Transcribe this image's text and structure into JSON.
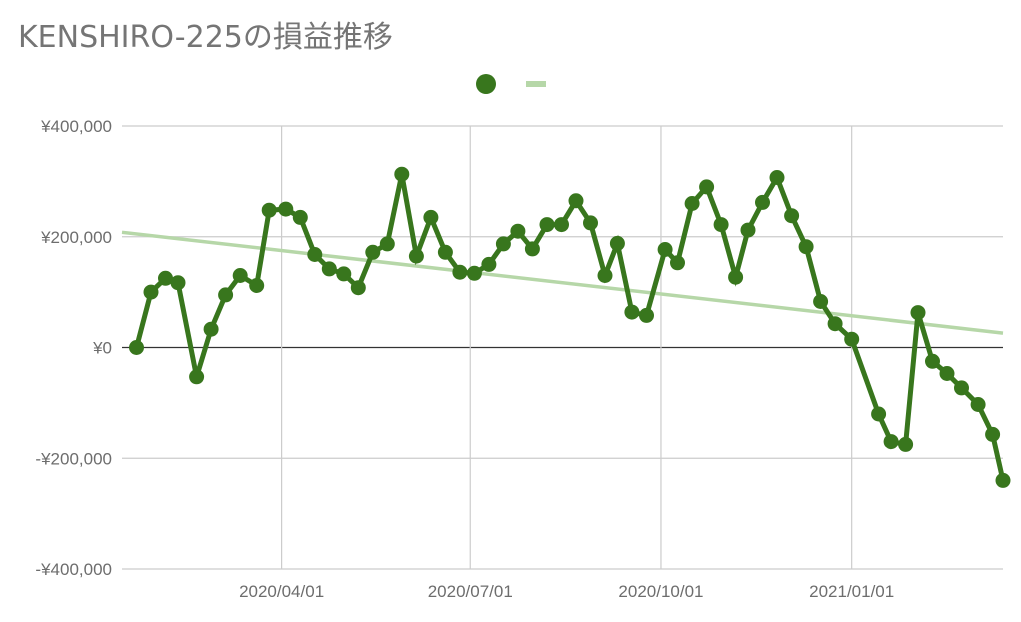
{
  "title": "KENSHIRO-225の損益推移",
  "colors": {
    "series": "#38761d",
    "trend": "#b6d7a8",
    "grid": "#cccccc",
    "zero_line": "#333333",
    "axis_text": "#6d6d6d"
  },
  "chart_data": {
    "type": "line",
    "title": "KENSHIRO-225の損益推移",
    "xlabel": "",
    "ylabel": "",
    "ylim": [
      -400000,
      400000
    ],
    "xlim": [
      "2020-01-15",
      "2021-03-15"
    ],
    "grid": true,
    "legend": "top-center",
    "y_ticks": [
      {
        "value": 400000,
        "label": "¥400,000"
      },
      {
        "value": 200000,
        "label": "¥200,000"
      },
      {
        "value": 0,
        "label": "¥0"
      },
      {
        "value": -200000,
        "label": "-¥200,000"
      },
      {
        "value": -400000,
        "label": "-¥400,000"
      }
    ],
    "x_ticks": [
      {
        "value": "2020-04-01",
        "label": "2020/04/01"
      },
      {
        "value": "2020-07-01",
        "label": "2020/07/01"
      },
      {
        "value": "2020-10-01",
        "label": "2020/10/01"
      },
      {
        "value": "2021-01-01",
        "label": "2021/01/01"
      }
    ],
    "series": [
      {
        "type": "line",
        "markers": true,
        "x": [
          "2020-01-22",
          "2020-01-29",
          "2020-02-05",
          "2020-02-11",
          "2020-02-20",
          "2020-02-27",
          "2020-03-05",
          "2020-03-12",
          "2020-03-20",
          "2020-03-26",
          "2020-04-03",
          "2020-04-10",
          "2020-04-17",
          "2020-04-24",
          "2020-05-01",
          "2020-05-08",
          "2020-05-15",
          "2020-05-22",
          "2020-05-29",
          "2020-06-05",
          "2020-06-12",
          "2020-06-19",
          "2020-06-26",
          "2020-07-03",
          "2020-07-10",
          "2020-07-17",
          "2020-07-24",
          "2020-07-31",
          "2020-08-07",
          "2020-08-14",
          "2020-08-21",
          "2020-08-28",
          "2020-09-04",
          "2020-09-10",
          "2020-09-17",
          "2020-09-24",
          "2020-10-03",
          "2020-10-09",
          "2020-10-16",
          "2020-10-23",
          "2020-10-30",
          "2020-11-06",
          "2020-11-12",
          "2020-11-19",
          "2020-11-26",
          "2020-12-03",
          "2020-12-10",
          "2020-12-17",
          "2020-12-24",
          "2021-01-01",
          "2021-01-14",
          "2021-01-20",
          "2021-01-27",
          "2021-02-02",
          "2021-02-09",
          "2021-02-16",
          "2021-02-23",
          "2021-03-03",
          "2021-03-10",
          "2021-03-15"
        ],
        "values": [
          0,
          100000,
          125000,
          117000,
          -53000,
          33000,
          95000,
          130000,
          112000,
          248000,
          250000,
          235000,
          168000,
          142000,
          133000,
          108000,
          172000,
          187000,
          313000,
          165000,
          235000,
          172000,
          136000,
          134000,
          150000,
          187000,
          210000,
          178000,
          222000,
          222000,
          265000,
          225000,
          130000,
          188000,
          64000,
          58000,
          177000,
          153000,
          260000,
          290000,
          222000,
          127000,
          212000,
          262000,
          307000,
          238000,
          182000,
          83000,
          43000,
          15000,
          -120000,
          -170000,
          -175000,
          63000,
          -25000,
          -47000,
          -73000,
          -103000,
          -157000,
          -240000
        ]
      },
      {
        "type": "trend",
        "x": [
          "2020-01-15",
          "2021-03-15"
        ],
        "values": [
          208000,
          26000
        ]
      }
    ]
  }
}
